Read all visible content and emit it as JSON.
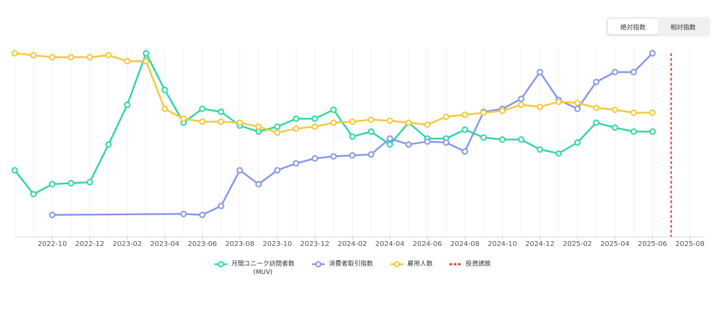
{
  "toggle": {
    "absolute_label": "絶対指数",
    "relative_label": "相対指数",
    "selected": "absolute"
  },
  "chart_data": {
    "type": "line",
    "x_ticks": [
      "2022-10",
      "2022-12",
      "2023-02",
      "2023-04",
      "2023-06",
      "2023-08",
      "2023-10",
      "2023-12",
      "2024-02",
      "2024-04",
      "2024-06",
      "2024-08",
      "2024-10",
      "2024-12",
      "2025-02",
      "2025-04",
      "2025-06",
      "2025-08"
    ],
    "grid": true,
    "legend_position": "bottom",
    "series": [
      {
        "name": "月間ユニーク訪問者数",
        "name_line2": "(MUV)",
        "color": "#2fd6a6",
        "points": [
          [
            "2022-08",
            59
          ],
          [
            "2022-09",
            71
          ],
          [
            "2022-10",
            66
          ],
          [
            "2022-11",
            65.5
          ],
          [
            "2022-12",
            65
          ],
          [
            "2023-01",
            46
          ],
          [
            "2023-02",
            26
          ],
          [
            "2023-03",
            0
          ],
          [
            "2023-04",
            18.5
          ],
          [
            "2023-05",
            35
          ],
          [
            "2023-06",
            28
          ],
          [
            "2023-07",
            29.5
          ],
          [
            "2023-08",
            36.5
          ],
          [
            "2023-09",
            39.5
          ],
          [
            "2023-10",
            37
          ],
          [
            "2023-11",
            33
          ],
          [
            "2023-12",
            33
          ],
          [
            "2024-01",
            28.5
          ],
          [
            "2024-02",
            42
          ],
          [
            "2024-03",
            39.5
          ],
          [
            "2024-04",
            46
          ],
          [
            "2024-05",
            35
          ],
          [
            "2024-06",
            43
          ],
          [
            "2024-07",
            43
          ],
          [
            "2024-08",
            38.5
          ],
          [
            "2024-09",
            42.5
          ],
          [
            "2024-10",
            43.5
          ],
          [
            "2024-11",
            43.5
          ],
          [
            "2024-12",
            48.5
          ],
          [
            "2025-01",
            50.5
          ],
          [
            "2025-02",
            45
          ],
          [
            "2025-03",
            35
          ],
          [
            "2025-04",
            37.5
          ],
          [
            "2025-05",
            39.5
          ],
          [
            "2025-06",
            39.5
          ]
        ]
      },
      {
        "name": "消費者取引指数",
        "color": "#8697e8",
        "points": [
          [
            "2022-10",
            81.5
          ],
          [
            "2023-05",
            81
          ],
          [
            "2023-06",
            81.5
          ],
          [
            "2023-07",
            77
          ],
          [
            "2023-08",
            59
          ],
          [
            "2023-09",
            66
          ],
          [
            "2023-10",
            59
          ],
          [
            "2023-11",
            55.5
          ],
          [
            "2023-12",
            53
          ],
          [
            "2024-01",
            52
          ],
          [
            "2024-02",
            51.5
          ],
          [
            "2024-03",
            51
          ],
          [
            "2024-04",
            43
          ],
          [
            "2024-05",
            46
          ],
          [
            "2024-06",
            44.5
          ],
          [
            "2024-07",
            45
          ],
          [
            "2024-08",
            49.5
          ],
          [
            "2024-09",
            29.5
          ],
          [
            "2024-10",
            28
          ],
          [
            "2024-11",
            23
          ],
          [
            "2024-12",
            9.5
          ],
          [
            "2025-01",
            23.5
          ],
          [
            "2025-02",
            28
          ],
          [
            "2025-03",
            14.5
          ],
          [
            "2025-04",
            9.5
          ],
          [
            "2025-05",
            9.5
          ],
          [
            "2025-06",
            0
          ]
        ]
      },
      {
        "name": "雇用人数",
        "color": "#f5c838",
        "points": [
          [
            "2022-08",
            0
          ],
          [
            "2022-09",
            1
          ],
          [
            "2022-10",
            2
          ],
          [
            "2022-11",
            2
          ],
          [
            "2022-12",
            2
          ],
          [
            "2023-01",
            1
          ],
          [
            "2023-02",
            4
          ],
          [
            "2023-03",
            4
          ],
          [
            "2023-04",
            28
          ],
          [
            "2023-05",
            33
          ],
          [
            "2023-06",
            34.5
          ],
          [
            "2023-07",
            34.5
          ],
          [
            "2023-08",
            35
          ],
          [
            "2023-09",
            37
          ],
          [
            "2023-10",
            40
          ],
          [
            "2023-11",
            38
          ],
          [
            "2023-12",
            37
          ],
          [
            "2024-01",
            35
          ],
          [
            "2024-02",
            34.5
          ],
          [
            "2024-03",
            33.5
          ],
          [
            "2024-04",
            34
          ],
          [
            "2024-05",
            35
          ],
          [
            "2024-06",
            36
          ],
          [
            "2024-07",
            32
          ],
          [
            "2024-08",
            31
          ],
          [
            "2024-09",
            30
          ],
          [
            "2024-10",
            29
          ],
          [
            "2024-11",
            26
          ],
          [
            "2024-12",
            27
          ],
          [
            "2025-01",
            24.5
          ],
          [
            "2025-02",
            25
          ],
          [
            "2025-03",
            27.5
          ],
          [
            "2025-04",
            28.5
          ],
          [
            "2025-05",
            30
          ],
          [
            "2025-06",
            30
          ]
        ]
      },
      {
        "name": "投資誘致",
        "color": "#e04545",
        "type": "vertical-marker",
        "points": [
          [
            "2025-07"
          ]
        ]
      }
    ]
  }
}
